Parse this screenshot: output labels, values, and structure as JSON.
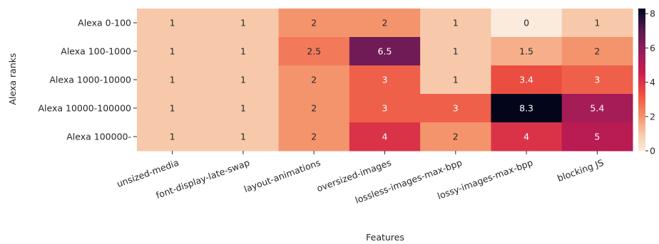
{
  "chart_data": {
    "type": "heatmap",
    "title": "",
    "xlabel": "Features",
    "ylabel": "Alexa ranks",
    "x_categories": [
      "unsized-media",
      "font-display-late-swap",
      "layout-animations",
      "oversized-images",
      "lossless-images-max-bpp",
      "lossy-images-max-bpp",
      "blocking JS"
    ],
    "y_categories": [
      "Alexa 0-100",
      "Alexa 100-1000",
      "Alexa 1000-10000",
      "Alexa 10000-100000",
      "Alexa 100000-"
    ],
    "values": [
      [
        1,
        1,
        2,
        2,
        1,
        0,
        1
      ],
      [
        1,
        1,
        2.5,
        6.5,
        1,
        1.5,
        2
      ],
      [
        1,
        1,
        2,
        3,
        1,
        3.4,
        3
      ],
      [
        1,
        1,
        2,
        3,
        3,
        8.3,
        5.4
      ],
      [
        1,
        1,
        2,
        4,
        2,
        4,
        5
      ]
    ],
    "value_labels": [
      [
        "1",
        "1",
        "2",
        "2",
        "1",
        "0",
        "1"
      ],
      [
        "1",
        "1",
        "2.5",
        "6.5",
        "1",
        "1.5",
        "2"
      ],
      [
        "1",
        "1",
        "2",
        "3",
        "1",
        "3.4",
        "3"
      ],
      [
        "1",
        "1",
        "2",
        "3",
        "3",
        "8.3",
        "5.4"
      ],
      [
        "1",
        "1",
        "2",
        "4",
        "2",
        "4",
        "5"
      ]
    ],
    "colorbar": {
      "min": 0,
      "max": 8.3,
      "ticks": [
        0,
        2,
        4,
        6,
        8
      ],
      "tick_labels": [
        "0",
        "2",
        "4",
        "6",
        "8"
      ],
      "colormap": "rocket_r"
    }
  }
}
